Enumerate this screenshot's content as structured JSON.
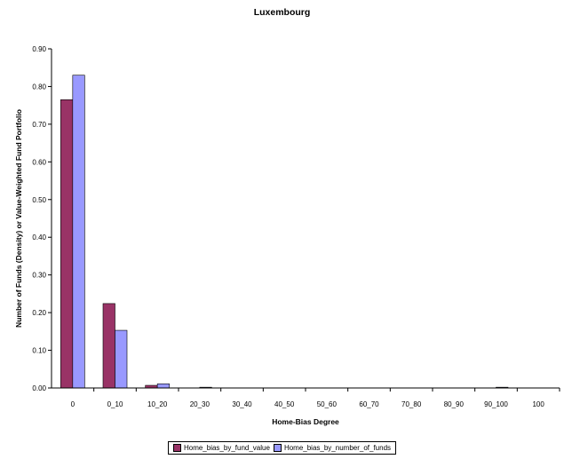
{
  "chart_data": {
    "type": "bar",
    "title": "Luxembourg",
    "xlabel": "Home-Bias Degree",
    "ylabel": "Number of Funds (Density) or Value-Weighted Fund Portfolio",
    "categories": [
      "0",
      "0_10",
      "10_20",
      "20_30",
      "30_40",
      "40_50",
      "50_60",
      "60_70",
      "70_80",
      "80_90",
      "90_100",
      "100"
    ],
    "series": [
      {
        "name": "Home_bias_by_fund_value",
        "color": "#993366",
        "values": [
          0.765,
          0.224,
          0.007,
          0.001,
          0.0,
          0.0,
          0.0,
          0.0,
          0.0,
          0.0,
          0.001,
          0.0
        ]
      },
      {
        "name": "Home_bias_by_number_of_funds",
        "color": "#9999FF",
        "values": [
          0.83,
          0.153,
          0.011,
          0.002,
          0.0,
          0.0,
          0.0,
          0.0,
          0.001,
          0.0,
          0.002,
          0.0
        ]
      }
    ],
    "ylim": [
      0,
      0.9
    ],
    "yticks": [
      "0.00",
      "0.10",
      "0.20",
      "0.30",
      "0.40",
      "0.50",
      "0.60",
      "0.70",
      "0.80",
      "0.90"
    ],
    "grid": false,
    "legend_position": "bottom"
  }
}
